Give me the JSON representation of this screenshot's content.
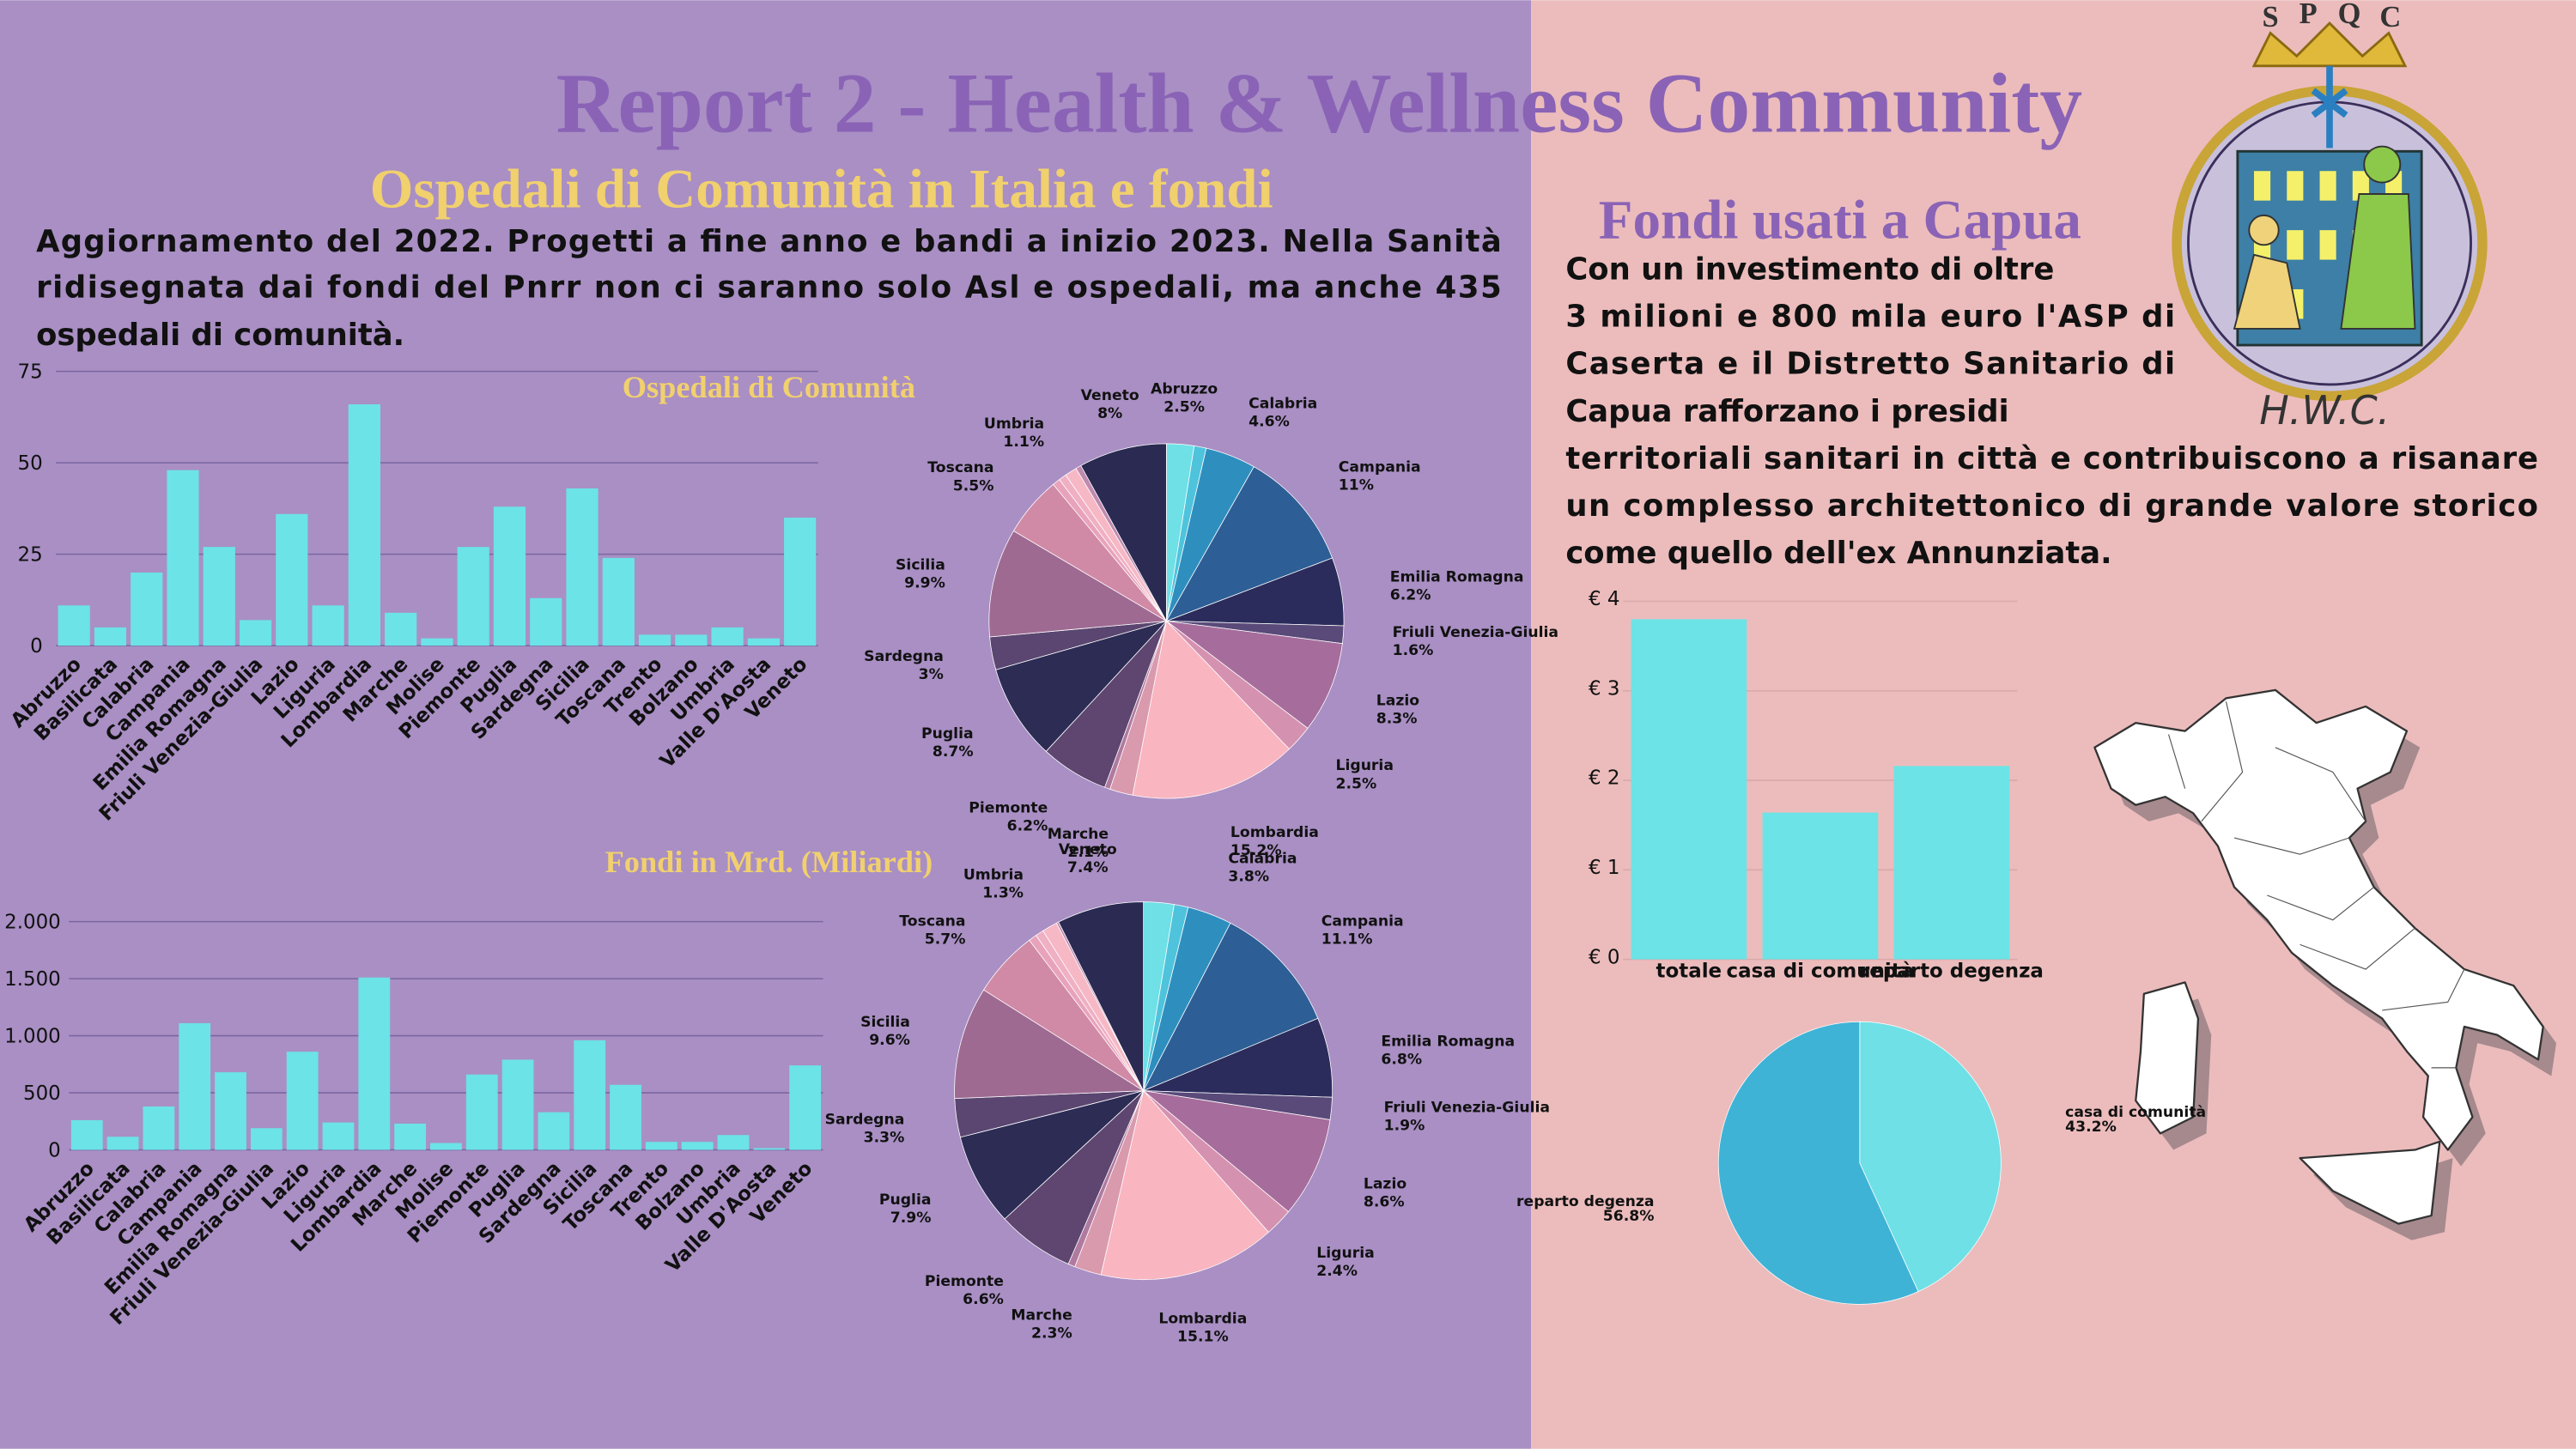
{
  "title": "Report 2 - Health & Wellness Community",
  "left_heading": "Ospedali di Comunità in Italia e fondi",
  "left_text": [
    "Aggiornamento del 2022. Progetti a fine anno e bandi a inizio 2023. Nella Sanità",
    "ridisegnata dai fondi del Pnrr non ci saranno solo Asl e ospedali, ma anche 435",
    "ospedali di comunità."
  ],
  "right_heading": "Fondi usati a Capua",
  "right_text": [
    "Con un investimento di oltre",
    "3 milioni e 800 mila euro l'ASP di",
    "Caserta e il Distretto Sanitario di",
    "Capua rafforzano i presidi",
    "territoriali sanitari in città e contribuiscono a risanare",
    "un complesso architettonico di grande valore storico",
    "come quello dell'ex Annunziata."
  ],
  "logo_letters": [
    "S",
    "P",
    "Q",
    "C"
  ],
  "logo_caption": "H.W.C.",
  "chart_data": [
    {
      "type": "bar",
      "title": "Ospedali di Comunità",
      "color": "#6ce3e6",
      "grid": true,
      "categories": [
        "Abruzzo",
        "Basilicata",
        "Calabria",
        "Campania",
        "Emilia Romagna",
        "Friuli Venezia-Giulia",
        "Lazio",
        "Liguria",
        "Lombardia",
        "Marche",
        "Molise",
        "Piemonte",
        "Puglia",
        "Sardegna",
        "Sicilia",
        "Toscana",
        "Trento",
        "Bolzano",
        "Umbria",
        "Valle D'Aosta",
        "Veneto"
      ],
      "values": [
        11,
        5,
        20,
        48,
        27,
        7,
        36,
        11,
        66,
        9,
        2,
        27,
        38,
        13,
        43,
        24,
        3,
        3,
        5,
        2,
        35
      ],
      "ylim": [
        0,
        75
      ],
      "yticks": [
        0,
        25,
        50,
        75
      ]
    },
    {
      "type": "pie",
      "categories": [
        "Abruzzo",
        null,
        "Calabria",
        "Campania",
        "Emilia Romagna",
        "Friuli Venezia-Giulia",
        "Lazio",
        "Liguria",
        "Lombardia",
        "Marche",
        null,
        "Piemonte",
        "Puglia",
        "Sardegna",
        "Sicilia",
        "Toscana",
        null,
        null,
        "Umbria",
        null,
        "Veneto"
      ],
      "values": [
        2.5,
        1.1,
        4.6,
        11,
        6.2,
        1.6,
        8.3,
        2.5,
        15.2,
        2.1,
        0.5,
        6.2,
        8.7,
        3,
        9.9,
        5.5,
        0.7,
        0.7,
        1.1,
        0.5,
        8
      ],
      "value_labels": [
        "2.5%",
        null,
        "4.6%",
        "11%",
        "6.2%",
        "1.6%",
        "8.3%",
        "2.5%",
        "15.2%",
        "2.1%",
        null,
        "6.2%",
        "8.7%",
        "3%",
        "9.9%",
        "5.5%",
        null,
        null,
        "1.1%",
        null,
        "8%"
      ],
      "colors": [
        "#6ee0e6",
        "#4fc3dc",
        "#2e8fbf",
        "#2d5f96",
        "#2b2c5c",
        "#5a4a7a",
        "#a66d9c",
        "#d592b0",
        "#f9b5c0",
        "#d99aae",
        "#b07aa0",
        "#5e4670",
        "#2c2c55",
        "#5a4670",
        "#9e6a92",
        "#d08aa6",
        "#e8a3bb",
        "#f0b0c4",
        "#f7b8c6",
        "#c08ab0",
        "#2a2a52"
      ]
    },
    {
      "type": "bar",
      "title": "Fondi in Mrd. (Miliardi)",
      "color": "#6ce3e6",
      "grid": true,
      "categories": [
        "Abruzzo",
        "Basilicata",
        "Calabria",
        "Campania",
        "Emilia Romagna",
        "Friuli Venezia-Giulia",
        "Lazio",
        "Liguria",
        "Lombardia",
        "Marche",
        "Molise",
        "Piemonte",
        "Puglia",
        "Sardegna",
        "Sicilia",
        "Toscana",
        "Trento",
        "Bolzano",
        "Umbria",
        "Valle D'Aosta",
        "Veneto"
      ],
      "values": [
        260,
        115,
        380,
        1110,
        680,
        190,
        860,
        240,
        1510,
        230,
        60,
        660,
        790,
        330,
        960,
        570,
        70,
        70,
        130,
        15,
        740
      ],
      "ylim": [
        0,
        2000
      ],
      "yticks": [
        0,
        500,
        {
          "value": 1000,
          "label": "1.000"
        },
        {
          "value": 1500,
          "label": "1.500"
        },
        {
          "value": 2000,
          "label": "2.000"
        }
      ]
    },
    {
      "type": "pie",
      "categories": [
        null,
        null,
        "Calabria",
        "Campania",
        "Emilia Romagna",
        "Friuli Venezia-Giulia",
        "Lazio",
        "Liguria",
        "Lombardia",
        "Marche",
        null,
        "Piemonte",
        "Puglia",
        "Sardegna",
        "Sicilia",
        "Toscana",
        null,
        null,
        "Umbria",
        null,
        "Veneto"
      ],
      "values": [
        2.6,
        1.2,
        3.8,
        11.1,
        6.8,
        1.9,
        8.6,
        2.4,
        15.1,
        2.3,
        0.6,
        6.6,
        7.9,
        3.3,
        9.6,
        5.7,
        0.7,
        0.7,
        1.3,
        0.2,
        7.4
      ],
      "value_labels": [
        null,
        null,
        "3.8%",
        "11.1%",
        "6.8%",
        "1.9%",
        "8.6%",
        "2.4%",
        "15.1%",
        "2.3%",
        null,
        "6.6%",
        "7.9%",
        "3.3%",
        "9.6%",
        "5.7%",
        null,
        null,
        "1.3%",
        null,
        "7.4%"
      ],
      "colors": [
        "#6ee0e6",
        "#4fc3dc",
        "#2e8fbf",
        "#2d5f96",
        "#2b2c5c",
        "#5a4a7a",
        "#a66d9c",
        "#d592b0",
        "#f9b5c0",
        "#d99aae",
        "#b07aa0",
        "#5e4670",
        "#2c2c55",
        "#5a4670",
        "#9e6a92",
        "#d08aa6",
        "#e8a3bb",
        "#f0b0c4",
        "#f7b8c6",
        "#c08ab0",
        "#2a2a52"
      ]
    },
    {
      "type": "bar",
      "color": "#6ce3e6",
      "grid": true,
      "categories": [
        "totale",
        "casa di comunità",
        "reparto degenza"
      ],
      "values": [
        3.8,
        1.64,
        2.16
      ],
      "ylim": [
        0,
        4
      ],
      "yticks": [
        {
          "value": 0,
          "label": "€ 0"
        },
        {
          "value": 1,
          "label": "€ 1"
        },
        {
          "value": 2,
          "label": "€ 2"
        },
        {
          "value": 3,
          "label": "€ 3"
        },
        {
          "value": 4,
          "label": "€ 4"
        }
      ]
    },
    {
      "type": "pie",
      "categories": [
        "casa di comunità",
        "reparto degenza"
      ],
      "values": [
        43.2,
        56.8
      ],
      "value_labels": [
        "43.2%",
        "56.8%"
      ],
      "colors": [
        "#6ee0e6",
        "#3fb3d6"
      ]
    }
  ]
}
